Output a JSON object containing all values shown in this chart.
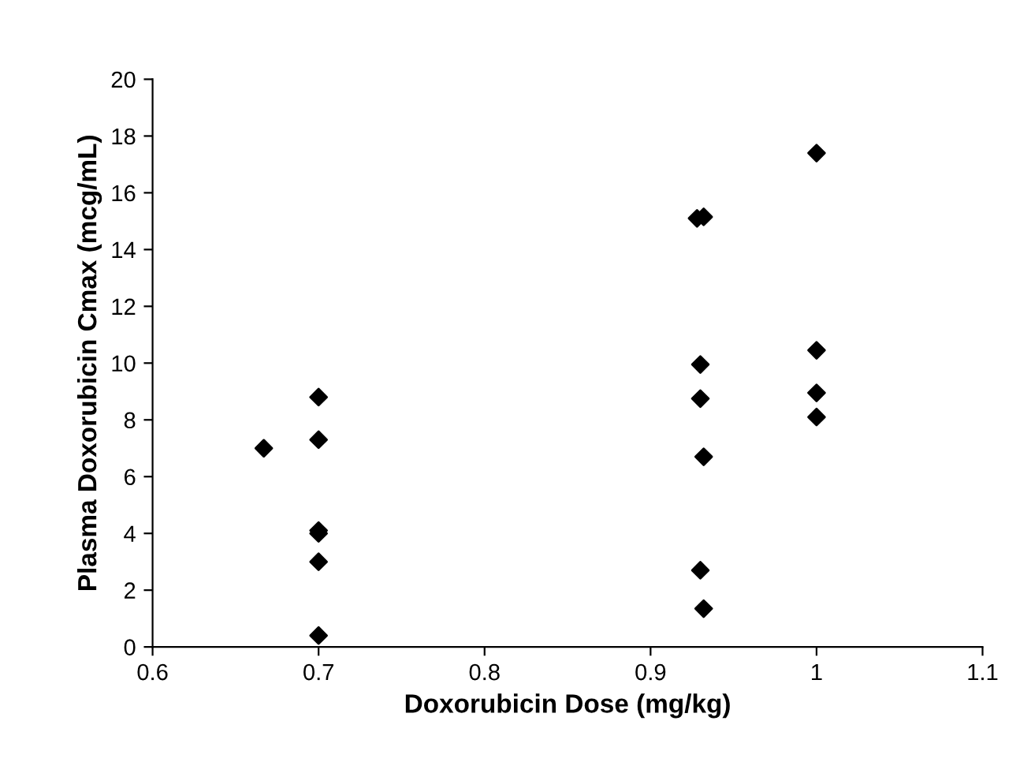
{
  "chart_data": {
    "type": "scatter",
    "xlabel": "Doxorubicin Dose (mg/kg)",
    "ylabel": "Plasma Doxorubicin Cmax (mcg/mL)",
    "series": [
      {
        "color": "#000000",
        "x": [
          0.667,
          0.7,
          0.7,
          0.7,
          0.7,
          0.7,
          0.7,
          0.928,
          0.932,
          0.93,
          0.93,
          0.932,
          0.93,
          0.932,
          1.0,
          1.0,
          1.0,
          1.0
        ],
        "values": [
          7.0,
          8.8,
          7.3,
          4.1,
          4.0,
          3.0,
          0.4,
          15.1,
          15.15,
          9.95,
          8.75,
          6.7,
          2.7,
          1.35,
          17.4,
          10.45,
          8.95,
          8.1
        ]
      }
    ],
    "marker": "diamond",
    "xlim": [
      0.6,
      1.1
    ],
    "xticks": [
      0.6,
      0.7,
      0.8,
      0.9,
      {
        "value": 1,
        "label": "1"
      },
      1.1
    ],
    "ylim": [
      0,
      20
    ],
    "yticks": [
      0,
      2,
      4,
      6,
      8,
      10,
      12,
      14,
      16,
      18,
      20
    ],
    "grid": false,
    "legend": false
  }
}
